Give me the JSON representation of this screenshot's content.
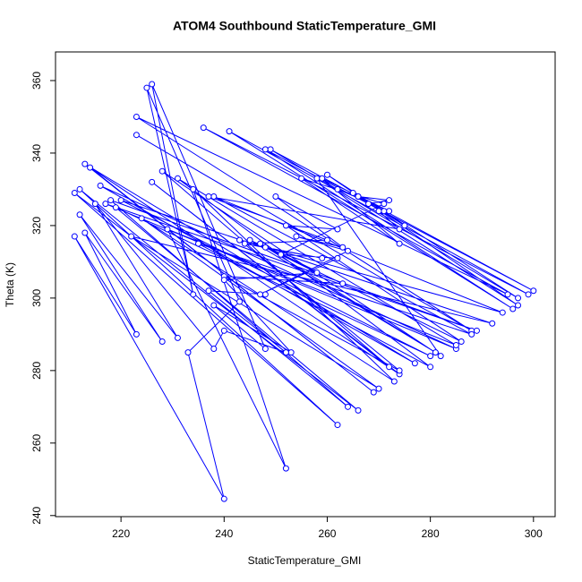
{
  "chart_data": {
    "type": "line",
    "title": "ATOM4 Southbound StaticTemperature_GMI",
    "x_label": "StaticTemperature_GMI",
    "y_label": "Theta (K)",
    "color": "#0000ff",
    "markers": true,
    "x": [
      223,
      288,
      223,
      295,
      236,
      299,
      241,
      296,
      248,
      300,
      249,
      297,
      260,
      297,
      258,
      282,
      228,
      272,
      226,
      274,
      214,
      269,
      213,
      277,
      216,
      285,
      217,
      289,
      218,
      264,
      212,
      262,
      211,
      266,
      219,
      280,
      220,
      292,
      222,
      270,
      224,
      273,
      234,
      252,
      229,
      285,
      231,
      280,
      235,
      288,
      238,
      294,
      243,
      274,
      240,
      263,
      245,
      281,
      247,
      286,
      252,
      262,
      250,
      263,
      254,
      264,
      247,
      262,
      251,
      271,
      255,
      274,
      259,
      272,
      262,
      266,
      265,
      275,
      266,
      272,
      268,
      271,
      270,
      274,
      237,
      260,
      244,
      259,
      248,
      258,
      240,
      253,
      238,
      248,
      226,
      234,
      225,
      243,
      233,
      240,
      211,
      223,
      213,
      228,
      212,
      231,
      215,
      238,
      240,
      252,
      237,
      248
    ],
    "values": [
      345,
      291,
      350,
      301,
      347,
      301,
      346,
      297,
      341,
      302,
      341,
      300,
      334,
      298,
      333,
      284,
      335,
      281,
      332,
      279,
      336,
      274,
      337,
      282,
      331,
      286,
      326,
      291,
      327,
      270,
      330,
      265,
      329,
      269,
      325,
      284,
      327,
      293,
      317,
      275,
      322,
      277,
      330,
      253,
      319,
      287,
      333,
      281,
      315,
      290,
      328,
      296,
      316,
      280,
      306,
      304,
      316,
      285,
      315,
      288,
      320,
      319,
      328,
      314,
      317,
      313,
      301,
      311,
      312,
      326,
      333,
      315,
      333,
      324,
      330,
      328,
      329,
      320,
      328,
      327,
      326,
      324,
      324,
      319,
      328,
      316,
      315,
      311,
      314,
      307,
      305,
      285,
      298,
      286,
      359,
      301,
      358,
      299,
      285,
      244.6,
      317,
      290,
      318,
      288,
      323,
      289,
      326,
      286,
      291,
      285,
      302,
      301
    ],
    "xlim": [
      207.3,
      304.2
    ],
    "ylim": [
      239.7,
      367.9
    ],
    "xticks": [
      220,
      240,
      260,
      280,
      300
    ],
    "yticks": [
      240,
      260,
      280,
      300,
      320,
      340,
      360
    ]
  }
}
